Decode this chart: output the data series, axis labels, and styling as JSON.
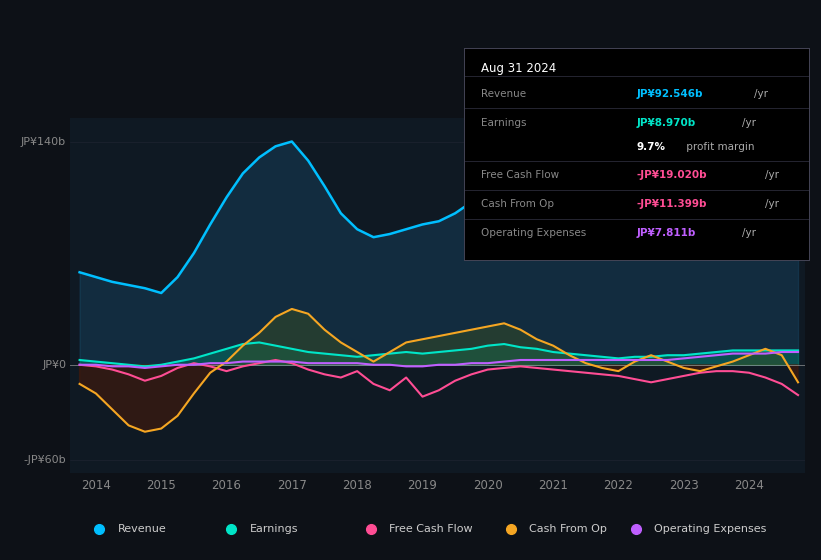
{
  "bg_color": "#0d1117",
  "chart_bg": "#0f1923",
  "title": "Aug 31 2024",
  "y_label_top": "JP¥140b",
  "y_label_mid": "JP¥0",
  "y_label_bot": "-JP¥60b",
  "x_ticks": [
    2014,
    2015,
    2016,
    2017,
    2018,
    2019,
    2020,
    2021,
    2022,
    2023,
    2024
  ],
  "ylim": [
    -68,
    155
  ],
  "xlim": [
    2013.6,
    2024.85
  ],
  "revenue_color": "#00bfff",
  "earnings_color": "#00e5c8",
  "fcf_color": "#ff4d94",
  "cashop_color": "#f5a623",
  "opex_color": "#bf5fff",
  "revenue_fill": "#0d4a6e",
  "earnings_fill": "#006b5e",
  "cashop_fill_pos": "#5c3a00",
  "cashop_fill_neg": "#5c1a0a",
  "revenue": {
    "x": [
      2013.75,
      2014.0,
      2014.25,
      2014.5,
      2014.75,
      2015.0,
      2015.25,
      2015.5,
      2015.75,
      2016.0,
      2016.25,
      2016.5,
      2016.75,
      2017.0,
      2017.25,
      2017.5,
      2017.75,
      2018.0,
      2018.25,
      2018.5,
      2018.75,
      2019.0,
      2019.25,
      2019.5,
      2019.75,
      2020.0,
      2020.25,
      2020.5,
      2020.75,
      2021.0,
      2021.25,
      2021.5,
      2021.75,
      2022.0,
      2022.25,
      2022.5,
      2022.75,
      2023.0,
      2023.25,
      2023.5,
      2023.75,
      2024.0,
      2024.25,
      2024.5,
      2024.75
    ],
    "y": [
      58,
      55,
      52,
      50,
      48,
      45,
      55,
      70,
      88,
      105,
      120,
      130,
      137,
      140,
      128,
      112,
      95,
      85,
      80,
      82,
      85,
      88,
      90,
      95,
      102,
      118,
      122,
      120,
      115,
      110,
      104,
      96,
      90,
      83,
      79,
      73,
      71,
      69,
      73,
      82,
      92,
      102,
      107,
      110,
      92
    ]
  },
  "earnings": {
    "x": [
      2013.75,
      2014.0,
      2014.25,
      2014.5,
      2014.75,
      2015.0,
      2015.25,
      2015.5,
      2015.75,
      2016.0,
      2016.25,
      2016.5,
      2016.75,
      2017.0,
      2017.25,
      2017.5,
      2017.75,
      2018.0,
      2018.25,
      2018.5,
      2018.75,
      2019.0,
      2019.25,
      2019.5,
      2019.75,
      2020.0,
      2020.25,
      2020.5,
      2020.75,
      2021.0,
      2021.25,
      2021.5,
      2021.75,
      2022.0,
      2022.25,
      2022.5,
      2022.75,
      2023.0,
      2023.25,
      2023.5,
      2023.75,
      2024.0,
      2024.25,
      2024.5,
      2024.75
    ],
    "y": [
      3,
      2,
      1,
      0,
      -1,
      0,
      2,
      4,
      7,
      10,
      13,
      14,
      12,
      10,
      8,
      7,
      6,
      5,
      6,
      7,
      8,
      7,
      8,
      9,
      10,
      12,
      13,
      11,
      10,
      8,
      7,
      6,
      5,
      4,
      5,
      5,
      6,
      6,
      7,
      8,
      9,
      9,
      9,
      9,
      9
    ]
  },
  "fcf": {
    "x": [
      2013.75,
      2014.0,
      2014.25,
      2014.5,
      2014.75,
      2015.0,
      2015.25,
      2015.5,
      2015.75,
      2016.0,
      2016.25,
      2016.5,
      2016.75,
      2017.0,
      2017.25,
      2017.5,
      2017.75,
      2018.0,
      2018.25,
      2018.5,
      2018.75,
      2019.0,
      2019.25,
      2019.5,
      2019.75,
      2020.0,
      2020.25,
      2020.5,
      2020.75,
      2021.0,
      2021.25,
      2021.5,
      2021.75,
      2022.0,
      2022.25,
      2022.5,
      2022.75,
      2023.0,
      2023.25,
      2023.5,
      2023.75,
      2024.0,
      2024.25,
      2024.5,
      2024.75
    ],
    "y": [
      0,
      -1,
      -3,
      -6,
      -10,
      -7,
      -2,
      1,
      -1,
      -4,
      -1,
      1,
      3,
      1,
      -3,
      -6,
      -8,
      -4,
      -12,
      -16,
      -8,
      -20,
      -16,
      -10,
      -6,
      -3,
      -2,
      -1,
      -2,
      -3,
      -4,
      -5,
      -6,
      -7,
      -9,
      -11,
      -9,
      -7,
      -5,
      -4,
      -4,
      -5,
      -8,
      -12,
      -19
    ]
  },
  "cashop": {
    "x": [
      2013.75,
      2014.0,
      2014.25,
      2014.5,
      2014.75,
      2015.0,
      2015.25,
      2015.5,
      2015.75,
      2016.0,
      2016.25,
      2016.5,
      2016.75,
      2017.0,
      2017.25,
      2017.5,
      2017.75,
      2018.0,
      2018.25,
      2018.5,
      2018.75,
      2019.0,
      2019.25,
      2019.5,
      2019.75,
      2020.0,
      2020.25,
      2020.5,
      2020.75,
      2021.0,
      2021.25,
      2021.5,
      2021.75,
      2022.0,
      2022.25,
      2022.5,
      2022.75,
      2023.0,
      2023.25,
      2023.5,
      2023.75,
      2024.0,
      2024.25,
      2024.5,
      2024.75
    ],
    "y": [
      -12,
      -18,
      -28,
      -38,
      -42,
      -40,
      -32,
      -18,
      -5,
      2,
      12,
      20,
      30,
      35,
      32,
      22,
      14,
      8,
      2,
      8,
      14,
      16,
      18,
      20,
      22,
      24,
      26,
      22,
      16,
      12,
      6,
      1,
      -2,
      -4,
      2,
      6,
      2,
      -2,
      -4,
      -1,
      2,
      6,
      10,
      6,
      -11
    ]
  },
  "opex": {
    "x": [
      2013.75,
      2014.0,
      2014.25,
      2014.5,
      2014.75,
      2015.0,
      2015.25,
      2015.5,
      2015.75,
      2016.0,
      2016.25,
      2016.5,
      2016.75,
      2017.0,
      2017.25,
      2017.5,
      2017.75,
      2018.0,
      2018.25,
      2018.5,
      2018.75,
      2019.0,
      2019.25,
      2019.5,
      2019.75,
      2020.0,
      2020.25,
      2020.5,
      2020.75,
      2021.0,
      2021.25,
      2021.5,
      2021.75,
      2022.0,
      2022.25,
      2022.5,
      2022.75,
      2023.0,
      2023.25,
      2023.5,
      2023.75,
      2024.0,
      2024.25,
      2024.5,
      2024.75
    ],
    "y": [
      0,
      0,
      -1,
      -1,
      -2,
      -1,
      0,
      0,
      1,
      1,
      2,
      2,
      2,
      2,
      1,
      1,
      1,
      1,
      0,
      0,
      -1,
      -1,
      0,
      0,
      1,
      1,
      2,
      3,
      3,
      3,
      3,
      3,
      3,
      3,
      3,
      3,
      3,
      4,
      5,
      6,
      7,
      7,
      7,
      8,
      8
    ]
  },
  "info_box": {
    "title": "Aug 31 2024",
    "rows": [
      {
        "label": "Revenue",
        "value": "JP¥92.546b",
        "unit": "/yr",
        "value_color": "#00bfff"
      },
      {
        "label": "Earnings",
        "value": "JP¥8.970b",
        "unit": "/yr",
        "value_color": "#00e5c8"
      },
      {
        "label": "",
        "value": "9.7%",
        "unit": " profit margin",
        "value_color": "#ffffff"
      },
      {
        "label": "Free Cash Flow",
        "value": "-JP¥19.020b",
        "unit": "/yr",
        "value_color": "#ff4d94"
      },
      {
        "label": "Cash From Op",
        "value": "-JP¥11.399b",
        "unit": "/yr",
        "value_color": "#ff4d94"
      },
      {
        "label": "Operating Expenses",
        "value": "JP¥7.811b",
        "unit": "/yr",
        "value_color": "#bf5fff"
      }
    ]
  },
  "legend": [
    {
      "label": "Revenue",
      "color": "#00bfff"
    },
    {
      "label": "Earnings",
      "color": "#00e5c8"
    },
    {
      "label": "Free Cash Flow",
      "color": "#ff4d94"
    },
    {
      "label": "Cash From Op",
      "color": "#f5a623"
    },
    {
      "label": "Operating Expenses",
      "color": "#bf5fff"
    }
  ]
}
